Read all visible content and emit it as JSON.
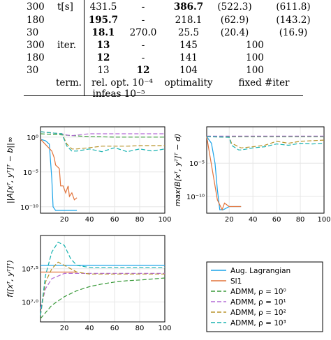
{
  "table": {
    "rows": [
      {
        "n": "300",
        "metric": "t[s]",
        "c1": "431.5",
        "c2": "-",
        "c3": "386.7",
        "c4": "(522.3)",
        "c5": "(611.8)",
        "bold": [
          3
        ]
      },
      {
        "n": "180",
        "metric": "",
        "c1": "195.7",
        "c2": "-",
        "c3": "218.1",
        "c4": "(62.9)",
        "c5": "(143.2)",
        "bold": [
          1
        ]
      },
      {
        "n": "30",
        "metric": "",
        "c1": "18.1",
        "c2": "270.0",
        "c3": "25.5",
        "c4": "(20.4)",
        "c5": "(16.9)",
        "bold": [
          1
        ]
      },
      {
        "n": "300",
        "metric": "iter.",
        "c1": "13",
        "c2": "-",
        "c3": "145",
        "span": "100",
        "bold": [
          1
        ]
      },
      {
        "n": "180",
        "metric": "",
        "c1": "12",
        "c2": "-",
        "c3": "141",
        "span": "100",
        "bold": [
          1
        ]
      },
      {
        "n": "30",
        "metric": "",
        "c1": "13",
        "c2": "12",
        "c3": "104",
        "span": "100",
        "bold": [
          2
        ]
      }
    ],
    "term_label": "term.",
    "term_col1": "rel. opt. 10⁻⁴",
    "term_col1_line2": "infeas 10⁻⁵",
    "term_col3": "optimality",
    "term_col45": "fixed #iter"
  },
  "colors": {
    "aug_lagrangian": "#1aa3e8",
    "sl1": "#e2733a",
    "admm_1": "#3a9a3a",
    "admm_10": "#b36bd6",
    "admm_100": "#b8932a",
    "admm_1000": "#18b2b0"
  },
  "legend": [
    {
      "key": "aug",
      "label": "Aug. Lagrangian",
      "dash": "",
      "color": "#1aa3e8"
    },
    {
      "key": "sl1",
      "label": "Sl1",
      "dash": "",
      "color": "#e2733a"
    },
    {
      "key": "a1",
      "label": "ADMM, ρ = 10⁰",
      "dash": "6,3",
      "color": "#3a9a3a"
    },
    {
      "key": "a10",
      "label": "ADMM, ρ = 10¹",
      "dash": "6,3",
      "color": "#b36bd6"
    },
    {
      "key": "a100",
      "label": "ADMM, ρ = 10²",
      "dash": "6,3",
      "color": "#b8932a"
    },
    {
      "key": "a1000",
      "label": "ADMM, ρ = 10³",
      "dash": "6,3",
      "color": "#18b2b0"
    }
  ],
  "chart_data": [
    {
      "type": "line",
      "ylabel": "||A[xᵀ, yᵀ]ᵀ − b||∞",
      "ylog": true,
      "xlim": [
        1,
        100
      ],
      "xticks": [
        "20",
        "40",
        "60",
        "80",
        "100"
      ],
      "yticks": [
        "10⁰",
        "10⁻⁵",
        "10⁻¹⁰"
      ],
      "series": [
        {
          "key": "aug",
          "x": [
            1,
            5,
            8,
            10,
            11,
            13,
            30
          ],
          "y": [
            0.5,
            0.3,
            0.1,
            1e-06,
            1e-10,
            3e-11,
            3e-11
          ]
        },
        {
          "key": "sl1",
          "x": [
            1,
            10,
            12,
            13,
            16,
            17,
            19,
            21,
            23,
            24,
            26,
            28,
            30
          ],
          "y": [
            0.5,
            0.01,
            0.001,
            0.0001,
            3e-05,
            1e-07,
            1e-07,
            1e-08,
            1e-07,
            3e-09,
            1e-08,
            1e-09,
            2e-09
          ]
        },
        {
          "key": "a1",
          "x": [
            1,
            10,
            20,
            30,
            40,
            60,
            80,
            100
          ],
          "y": [
            3,
            2.5,
            2,
            1.5,
            1.2,
            1.0,
            1.0,
            1.0
          ]
        },
        {
          "key": "a10",
          "x": [
            1,
            10,
            18,
            25,
            30,
            40,
            60,
            80,
            100
          ],
          "y": [
            6,
            4,
            3,
            1.5,
            2,
            3,
            3,
            3,
            3
          ]
        },
        {
          "key": "a100",
          "x": [
            1,
            10,
            18,
            22,
            26,
            30,
            40,
            50,
            60,
            70,
            80,
            100
          ],
          "y": [
            6,
            4,
            3,
            0.1,
            0.02,
            0.02,
            0.03,
            0.05,
            0.05,
            0.05,
            0.06,
            0.06
          ]
        },
        {
          "key": "a1000",
          "x": [
            1,
            10,
            18,
            22,
            26,
            30,
            40,
            50,
            60,
            70,
            80,
            90,
            100
          ],
          "y": [
            6,
            4,
            3,
            0.05,
            0.01,
            0.01,
            0.02,
            0.008,
            0.03,
            0.008,
            0.02,
            0.01,
            0.02
          ]
        }
      ]
    },
    {
      "type": "line",
      "ylabel": "max(B[xᵀ, yᵀ]ᵀ − d)",
      "ylog": true,
      "xlim": [
        1,
        100
      ],
      "xticks": [
        "20",
        "40",
        "60",
        "80",
        "100"
      ],
      "yticks": [
        "10⁻⁵",
        "10⁻¹⁰"
      ],
      "series": [
        {
          "key": "aug",
          "x": [
            1,
            5,
            8,
            10,
            12,
            15,
            20,
            30
          ],
          "y": [
            0.1,
            0.01,
            1e-05,
            1e-09,
            1e-12,
            1e-12,
            3e-12,
            3e-12
          ]
        },
        {
          "key": "sl1",
          "x": [
            1,
            10,
            14,
            16,
            20,
            30
          ],
          "y": [
            0.1,
            3e-11,
            1e-12,
            1e-11,
            3e-12,
            3e-12
          ]
        },
        {
          "key": "a1",
          "x": [
            1,
            20,
            40,
            60,
            100
          ],
          "y": [
            0.1,
            0.1,
            0.1,
            0.1,
            0.1
          ]
        },
        {
          "key": "a10",
          "x": [
            1,
            20,
            40,
            60,
            100
          ],
          "y": [
            0.12,
            0.12,
            0.12,
            0.12,
            0.12
          ]
        },
        {
          "key": "a100",
          "x": [
            1,
            20,
            22,
            28,
            30,
            40,
            50,
            60,
            70,
            80,
            100
          ],
          "y": [
            0.1,
            0.08,
            0.01,
            0.003,
            0.002,
            0.003,
            0.005,
            0.02,
            0.01,
            0.02,
            0.03
          ]
        },
        {
          "key": "a1000",
          "x": [
            1,
            20,
            22,
            28,
            30,
            40,
            50,
            60,
            70,
            80,
            90,
            100
          ],
          "y": [
            0.1,
            0.08,
            0.005,
            0.001,
            0.001,
            0.002,
            0.003,
            0.008,
            0.005,
            0.01,
            0.008,
            0.01
          ]
        }
      ]
    },
    {
      "type": "line",
      "ylabel": "f([xᵀ, yᵀ]ᵀ)",
      "ylog": true,
      "xlim": [
        1,
        100
      ],
      "xticks": [
        "20",
        "40",
        "60",
        "80",
        "100"
      ],
      "yticks": [
        "10⁷·⁵",
        "10⁷·⁰"
      ],
      "series": [
        {
          "key": "aug",
          "x": [
            1,
            100
          ],
          "y": [
            7.55,
            7.55
          ]
        },
        {
          "key": "sl1",
          "x": [
            1,
            30
          ],
          "y": [
            7.45,
            7.45
          ]
        },
        {
          "key": "a1",
          "x": [
            1,
            10,
            20,
            30,
            40,
            50,
            60,
            70,
            80,
            100
          ],
          "y": [
            6.75,
            6.95,
            7.08,
            7.17,
            7.23,
            7.27,
            7.3,
            7.32,
            7.33,
            7.36
          ]
        },
        {
          "key": "a10",
          "x": [
            1,
            5,
            10,
            20,
            30,
            50,
            100
          ],
          "y": [
            6.9,
            7.2,
            7.35,
            7.43,
            7.43,
            7.43,
            7.43
          ]
        },
        {
          "key": "a100",
          "x": [
            1,
            5,
            10,
            15,
            20,
            30,
            40,
            60,
            100
          ],
          "y": [
            6.8,
            7.3,
            7.5,
            7.6,
            7.55,
            7.45,
            7.42,
            7.42,
            7.42
          ]
        },
        {
          "key": "a1000",
          "x": [
            1,
            5,
            10,
            15,
            20,
            25,
            30,
            40,
            60,
            100
          ],
          "y": [
            6.8,
            7.4,
            7.75,
            7.9,
            7.85,
            7.65,
            7.55,
            7.52,
            7.52,
            7.52
          ]
        }
      ]
    }
  ]
}
